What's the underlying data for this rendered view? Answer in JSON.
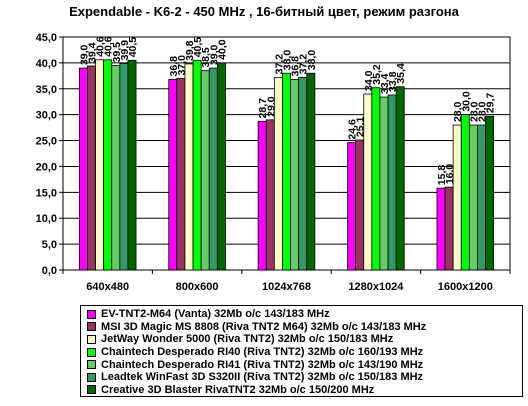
{
  "chart_data": {
    "type": "bar",
    "title": "Expendable - K6-2 - 450 MHz ,  16-битный цвет, режим разгона",
    "categories": [
      "640x480",
      "800x600",
      "1024x768",
      "1280x1024",
      "1600x1200"
    ],
    "ylim": [
      0,
      45
    ],
    "yticks": [
      "0,0",
      "5,0",
      "10,0",
      "15,0",
      "20,0",
      "25,0",
      "30,0",
      "35,0",
      "40,0",
      "45,0"
    ],
    "grid": true,
    "legend_position": "bottom",
    "series": [
      {
        "name": "EV-TNT2-M64 (Vanta) 32Mb o/c 143/183 MHz",
        "color": "#ff00ff",
        "values": [
          39.0,
          36.8,
          28.7,
          24.6,
          15.8
        ],
        "labels": [
          "39,0",
          "36,8",
          "28,7",
          "24,6",
          "15,8"
        ]
      },
      {
        "name": "MSI 3D Magic MS 8808 (Riva TNT2 M64) 32Mb o/c 143/183 MHz",
        "color": "#993366",
        "values": [
          39.4,
          37.0,
          29.0,
          25.1,
          16.0
        ],
        "labels": [
          "39,4",
          "37,0",
          "29,0",
          "25,1",
          "16,0"
        ]
      },
      {
        "name": "JetWay Wonder 5000 (Riva TNT2) 32Mb o/c 150/183 MHz",
        "color": "#ffffcc",
        "values": [
          40.6,
          39.8,
          37.2,
          34.0,
          28.0
        ],
        "labels": [
          "40,6",
          "39,8",
          "37,2",
          "34,0",
          "28,0"
        ]
      },
      {
        "name": "Chaintech Desperado RI40 (Riva TNT2) 32Mb o/c 160/193 MHz",
        "color": "#00ff00",
        "values": [
          40.6,
          40.5,
          38.0,
          35.2,
          30.0
        ],
        "labels": [
          "40,6",
          "40,5",
          "38,0",
          "35,2",
          "30,0"
        ]
      },
      {
        "name": "Chaintech Desperado RI41 (Riva TNT2) 32Mb o/c 143/190 MHz",
        "color": "#66cc66",
        "values": [
          39.5,
          38.5,
          36.8,
          33.4,
          28.0
        ],
        "labels": [
          "39,5",
          "38,5",
          "36,8",
          "33,4",
          "28,0"
        ]
      },
      {
        "name": "Leadtek WinFast 3D S320II (Riva TNT2) 32Mb o/c 150/183 MHz",
        "color": "#339966",
        "values": [
          39.9,
          39.0,
          37.2,
          33.8,
          28.0
        ],
        "labels": [
          "39,9",
          "39,0",
          "37,2",
          "33,8",
          "28,0"
        ]
      },
      {
        "name": "Creative 3D Blaster RivaTNT2 32Mb o/c 150/200 MHz",
        "color": "#006600",
        "values": [
          40.5,
          40.0,
          38.0,
          35.4,
          29.7
        ],
        "labels": [
          "40,5",
          "40,0",
          "38,0",
          "35,4",
          "29,7"
        ]
      }
    ]
  }
}
